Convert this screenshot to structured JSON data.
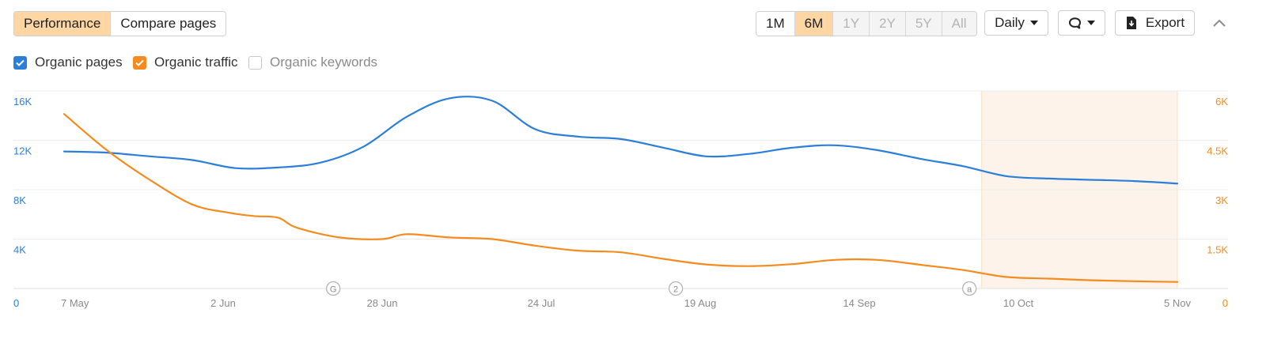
{
  "tabs": [
    {
      "label": "Performance",
      "active": true
    },
    {
      "label": "Compare pages",
      "active": false
    }
  ],
  "periods": [
    {
      "label": "1M",
      "state": "normal"
    },
    {
      "label": "6M",
      "state": "active"
    },
    {
      "label": "1Y",
      "state": "disabled"
    },
    {
      "label": "2Y",
      "state": "disabled"
    },
    {
      "label": "5Y",
      "state": "disabled"
    },
    {
      "label": "All",
      "state": "disabled"
    }
  ],
  "granularity": {
    "label": "Daily"
  },
  "annotations_menu": {
    "icon": "comment-icon"
  },
  "export": {
    "label": "Export",
    "icon": "download-icon"
  },
  "collapse": {
    "icon": "chevron-up-icon"
  },
  "metrics": [
    {
      "label": "Organic pages",
      "checked": true,
      "color": "#2b7fd9"
    },
    {
      "label": "Organic traffic",
      "checked": true,
      "color": "#f58b1f"
    },
    {
      "label": "Organic keywords",
      "checked": false,
      "color": "#c8c8c8"
    }
  ],
  "colors": {
    "accent": "#fdd6a4",
    "pages": "#2b7fd9",
    "traffic": "#f58b1f",
    "highlight": "#fdf3ea"
  },
  "chart_data": {
    "type": "line",
    "x_ticks": [
      "7 May",
      "2 Jun",
      "28 Jun",
      "24 Jul",
      "19 Aug",
      "14 Sep",
      "10 Oct",
      "5 Nov"
    ],
    "y_left": {
      "ticks": [
        "0",
        "4K",
        "8K",
        "12K",
        "16K"
      ],
      "range": [
        0,
        16000
      ]
    },
    "y_right": {
      "ticks": [
        "0",
        "1.5K",
        "3K",
        "4.5K",
        "6K"
      ],
      "range": [
        0,
        6000
      ]
    },
    "highlight_range": [
      "4 Oct",
      "5 Nov"
    ],
    "markers": [
      {
        "label": "G",
        "date": "20 Jun"
      },
      {
        "label": "2",
        "date": "15 Aug"
      },
      {
        "label": "a",
        "date": "2 Oct"
      }
    ],
    "series": [
      {
        "name": "Organic pages",
        "axis": "left",
        "points": [
          [
            "7 May",
            11100
          ],
          [
            "14 May",
            11000
          ],
          [
            "21 May",
            10700
          ],
          [
            "28 May",
            10400
          ],
          [
            "4 Jun",
            9750
          ],
          [
            "11 Jun",
            9800
          ],
          [
            "18 Jun",
            10200
          ],
          [
            "25 Jun",
            11500
          ],
          [
            "2 Jul",
            13900
          ],
          [
            "9 Jul",
            15400
          ],
          [
            "16 Jul",
            15200
          ],
          [
            "23 Jul",
            12900
          ],
          [
            "30 Jul",
            12300
          ],
          [
            "6 Aug",
            12100
          ],
          [
            "13 Aug",
            11400
          ],
          [
            "20 Aug",
            10700
          ],
          [
            "27 Aug",
            10900
          ],
          [
            "3 Sep",
            11400
          ],
          [
            "10 Sep",
            11600
          ],
          [
            "17 Sep",
            11200
          ],
          [
            "24 Sep",
            10500
          ],
          [
            "1 Oct",
            9900
          ],
          [
            "8 Oct",
            9100
          ],
          [
            "15 Oct",
            8900
          ],
          [
            "22 Oct",
            8800
          ],
          [
            "29 Oct",
            8700
          ],
          [
            "5 Nov",
            8500
          ]
        ]
      },
      {
        "name": "Organic traffic",
        "axis": "right",
        "points": [
          [
            "7 May",
            5300
          ],
          [
            "14 May",
            4200
          ],
          [
            "21 May",
            3300
          ],
          [
            "28 May",
            2550
          ],
          [
            "3 Jun",
            2300
          ],
          [
            "7 Jun",
            2200
          ],
          [
            "11 Jun",
            2150
          ],
          [
            "14 Jun",
            1850
          ],
          [
            "21 Jun",
            1550
          ],
          [
            "28 Jun",
            1500
          ],
          [
            "2 Jul",
            1650
          ],
          [
            "9 Jul",
            1550
          ],
          [
            "16 Jul",
            1500
          ],
          [
            "23 Jul",
            1300
          ],
          [
            "30 Jul",
            1150
          ],
          [
            "6 Aug",
            1100
          ],
          [
            "13 Aug",
            900
          ],
          [
            "20 Aug",
            730
          ],
          [
            "27 Aug",
            680
          ],
          [
            "3 Sep",
            740
          ],
          [
            "10 Sep",
            870
          ],
          [
            "17 Sep",
            870
          ],
          [
            "24 Sep",
            720
          ],
          [
            "1 Oct",
            560
          ],
          [
            "8 Oct",
            350
          ],
          [
            "15 Oct",
            300
          ],
          [
            "22 Oct",
            250
          ],
          [
            "29 Oct",
            220
          ],
          [
            "5 Nov",
            200
          ]
        ]
      }
    ]
  }
}
